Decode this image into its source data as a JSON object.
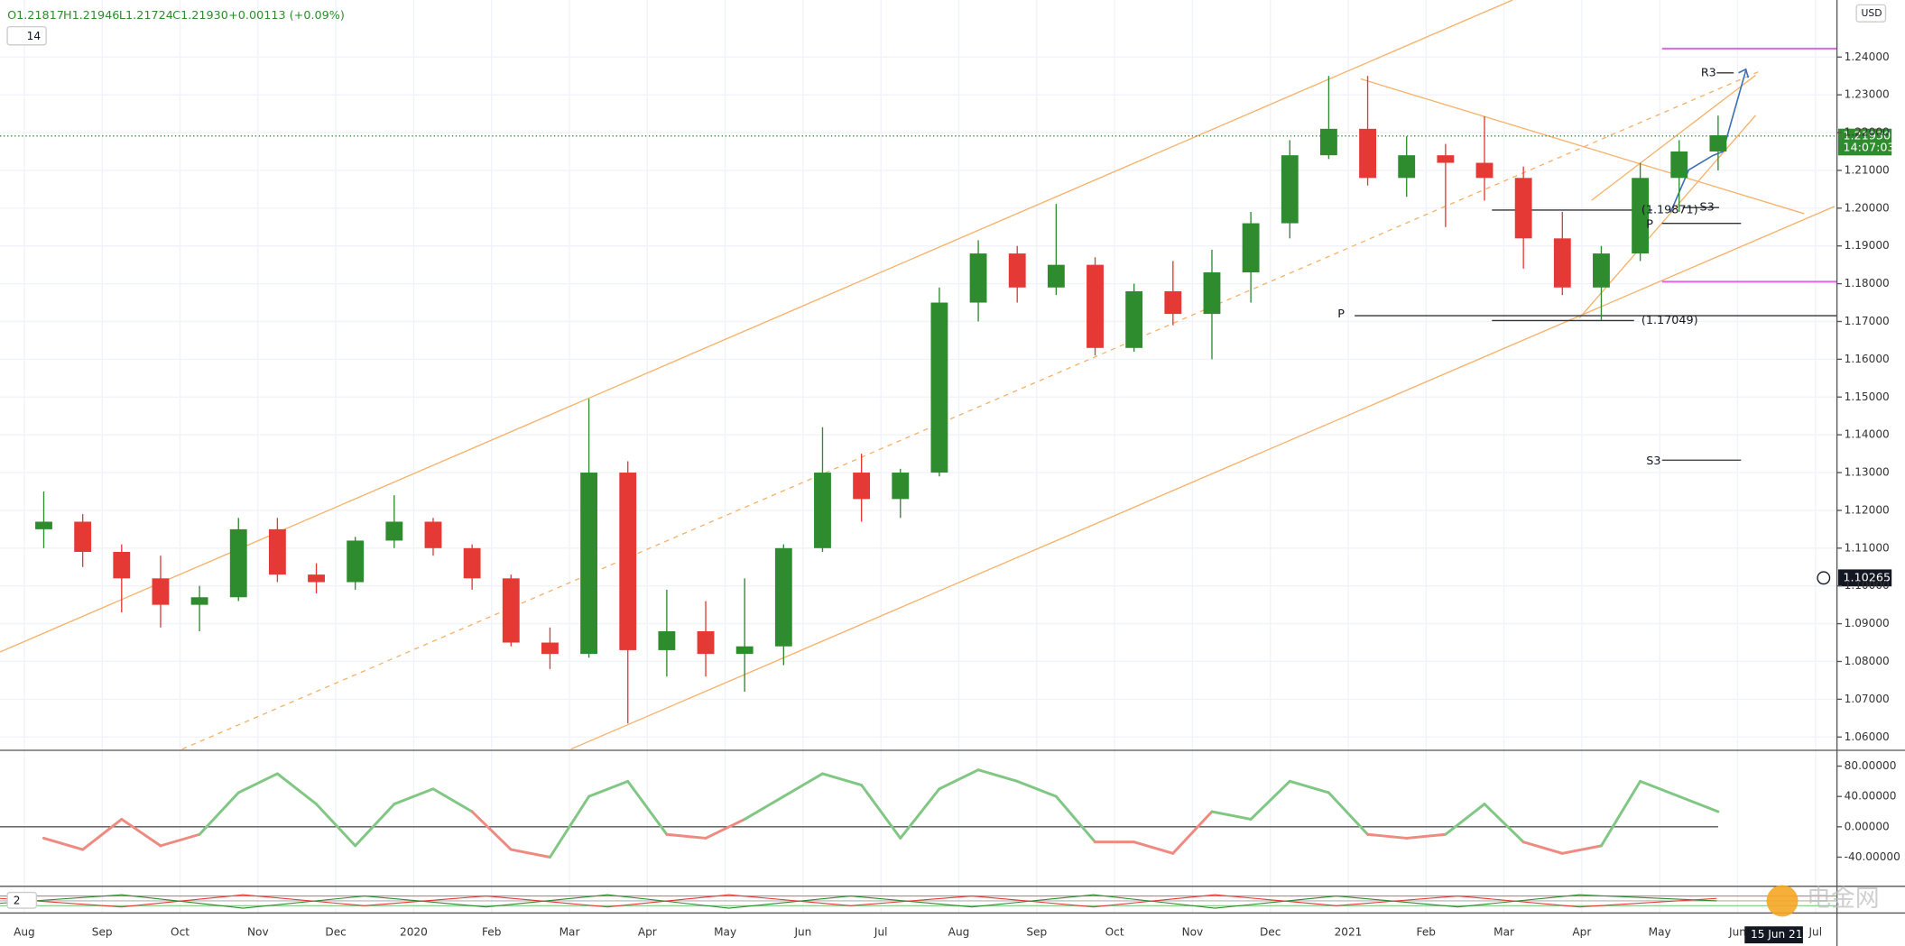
{
  "header": {
    "open": "O1.21817",
    "high": "H1.21946",
    "low": "L1.21724",
    "close": "C1.21930",
    "change": "+0.00113 (+0.09%)",
    "indicator_setting": "14",
    "lower_indicator": "2",
    "currency": "USD",
    "cursor_date": "15 Jun 21",
    "watermark": "电金网"
  },
  "chart_data": [
    {
      "type": "candlestick",
      "x_labels": [
        "Aug",
        "Sep",
        "Oct",
        "Nov",
        "Dec",
        "2020",
        "Feb",
        "Mar",
        "Apr",
        "May",
        "Jun",
        "Jul",
        "Aug",
        "Sep",
        "Oct",
        "Nov",
        "Dec",
        "2021",
        "Feb",
        "Mar",
        "Apr",
        "May",
        "Jun",
        "Jul"
      ],
      "open": [
        1.115,
        1.117,
        1.109,
        1.102,
        1.095,
        1.097,
        1.115,
        1.103,
        1.101,
        1.112,
        1.117,
        1.11,
        1.102,
        1.085,
        1.082,
        1.13,
        1.083,
        1.088,
        1.082,
        1.084,
        1.11,
        1.13,
        1.123,
        1.13,
        1.175,
        1.188,
        1.179,
        1.185,
        1.163,
        1.178,
        1.172,
        1.183,
        1.196,
        1.214,
        1.221,
        1.208,
        1.214,
        1.212,
        1.208,
        1.192,
        1.179,
        1.188,
        1.208,
        1.215
      ],
      "high": [
        1.125,
        1.119,
        1.111,
        1.108,
        1.1,
        1.118,
        1.118,
        1.106,
        1.113,
        1.124,
        1.118,
        1.111,
        1.103,
        1.089,
        1.1495,
        1.133,
        1.099,
        1.096,
        1.102,
        1.111,
        1.142,
        1.135,
        1.131,
        1.179,
        1.1915,
        1.19,
        1.2011,
        1.187,
        1.18,
        1.186,
        1.189,
        1.199,
        1.218,
        1.235,
        1.235,
        1.219,
        1.217,
        1.2243,
        1.211,
        1.199,
        1.19,
        1.212,
        1.218,
        1.2245
      ],
      "low": [
        1.11,
        1.105,
        1.093,
        1.089,
        1.088,
        1.096,
        1.101,
        1.098,
        1.099,
        1.11,
        1.108,
        1.099,
        1.084,
        1.078,
        1.081,
        1.0636,
        1.076,
        1.076,
        1.072,
        1.079,
        1.109,
        1.117,
        1.118,
        1.129,
        1.17,
        1.175,
        1.177,
        1.161,
        1.162,
        1.169,
        1.16,
        1.175,
        1.192,
        1.213,
        1.206,
        1.203,
        1.195,
        1.202,
        1.184,
        1.177,
        1.1704,
        1.186,
        1.199,
        1.21
      ],
      "close": [
        1.117,
        1.109,
        1.102,
        1.095,
        1.097,
        1.115,
        1.103,
        1.101,
        1.112,
        1.117,
        1.11,
        1.102,
        1.085,
        1.082,
        1.13,
        1.083,
        1.088,
        1.082,
        1.084,
        1.11,
        1.13,
        1.123,
        1.13,
        1.175,
        1.188,
        1.179,
        1.185,
        1.163,
        1.178,
        1.172,
        1.183,
        1.196,
        1.214,
        1.221,
        1.208,
        1.214,
        1.212,
        1.208,
        1.192,
        1.179,
        1.188,
        1.208,
        1.215,
        1.2193
      ],
      "up_color": "#2e8b2e",
      "down_color": "#e53935",
      "ylim": [
        1.0568,
        1.2551
      ],
      "yticks": [
        {
          "value": 1.06,
          "label": "1.06000"
        },
        {
          "value": 1.07,
          "label": "1.07000"
        },
        {
          "value": 1.08,
          "label": "1.08000"
        },
        {
          "value": 1.09,
          "label": "1.09000"
        },
        {
          "value": 1.1,
          "label": "1.10000"
        },
        {
          "value": 1.11,
          "label": "1.11000"
        },
        {
          "value": 1.12,
          "label": "1.12000"
        },
        {
          "value": 1.13,
          "label": "1.13000"
        },
        {
          "value": 1.14,
          "label": "1.14000"
        },
        {
          "value": 1.15,
          "label": "1.15000"
        },
        {
          "value": 1.16,
          "label": "1.16000"
        },
        {
          "value": 1.17,
          "label": "1.17000"
        },
        {
          "value": 1.18,
          "label": "1.18000"
        },
        {
          "value": 1.19,
          "label": "1.19000"
        },
        {
          "value": 1.2,
          "label": "1.20000"
        },
        {
          "value": 1.21,
          "label": "1.21000"
        },
        {
          "value": 1.22,
          "label": "1.22000"
        },
        {
          "value": 1.23,
          "label": "1.23000"
        },
        {
          "value": 1.24,
          "label": "1.24000"
        }
      ],
      "grid": true,
      "price_tag": "1.21930",
      "countdown": "14:07:03",
      "crosshair_label": "1.10265",
      "annotations": [
        "R3",
        "S3",
        "P",
        "(1.19871)",
        "P",
        "(1.17049)",
        "S3"
      ]
    },
    {
      "type": "oscillator",
      "values": [
        -15,
        -30,
        10,
        -25,
        -10,
        45,
        70,
        30,
        -25,
        30,
        50,
        20,
        -30,
        -40,
        40,
        60,
        -10,
        -15,
        10,
        40,
        70,
        55,
        -15,
        50,
        75,
        60,
        40,
        -20,
        -20,
        -35,
        20,
        10,
        60,
        45,
        -10,
        -15,
        -10,
        30,
        -20,
        -35,
        -25,
        60,
        40,
        20
      ],
      "up_color": "#81c784",
      "down_color": "#ef8a80",
      "ylim": [
        -80,
        100
      ],
      "yticks": [
        {
          "value": -40,
          "label": "-40.00000"
        },
        {
          "value": 0,
          "label": "0.00000"
        },
        {
          "value": 40,
          "label": "40.00000"
        },
        {
          "value": 80,
          "label": "80.00000"
        }
      ]
    }
  ]
}
